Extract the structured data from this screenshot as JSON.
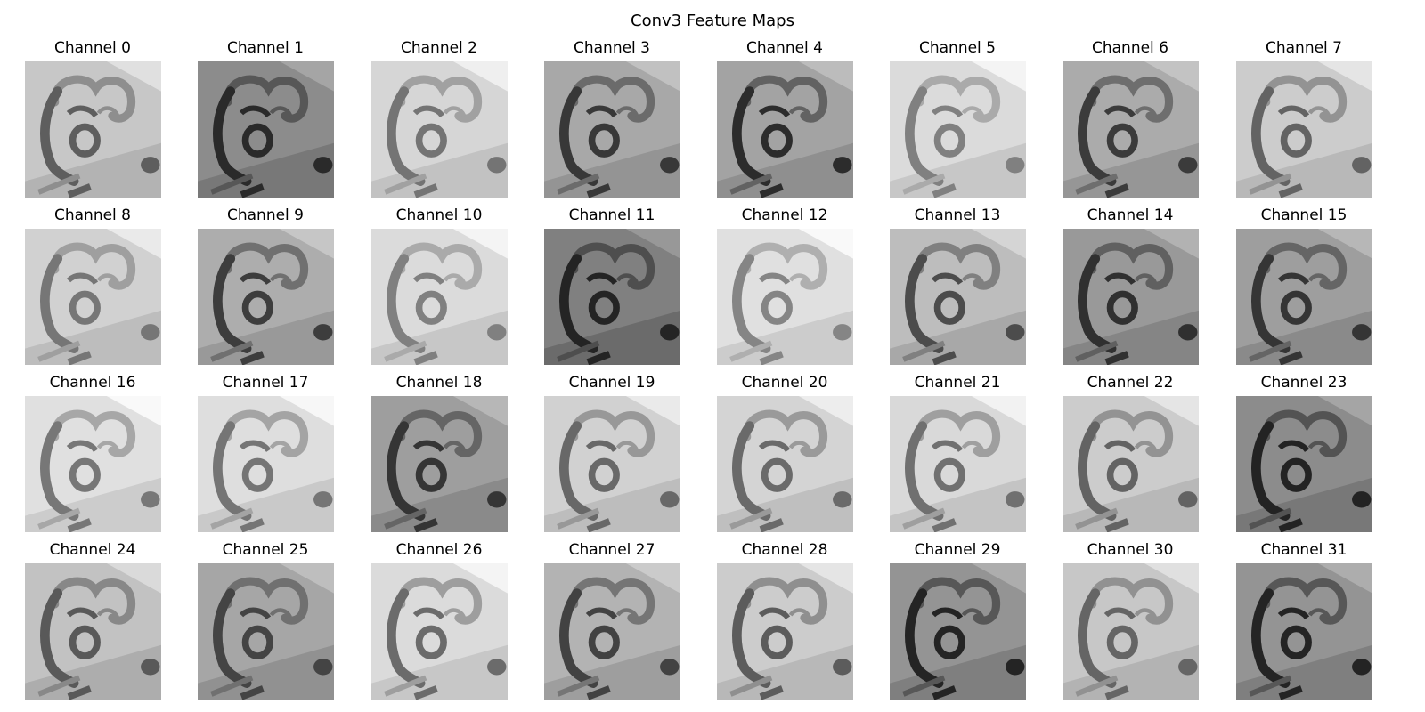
{
  "figure": {
    "title": "Conv3 Feature Maps",
    "colormap": "gray",
    "grid": {
      "rows": 4,
      "cols": 8
    },
    "panels": [
      {
        "title": "Channel 0",
        "tone": 0.78,
        "contrast": 0.75
      },
      {
        "title": "Channel 1",
        "tone": 0.55,
        "contrast": 0.7
      },
      {
        "title": "Channel 2",
        "tone": 0.84,
        "contrast": 0.7
      },
      {
        "title": "Channel 3",
        "tone": 0.66,
        "contrast": 0.8
      },
      {
        "title": "Channel 4",
        "tone": 0.64,
        "contrast": 0.85
      },
      {
        "title": "Channel 5",
        "tone": 0.86,
        "contrast": 0.65
      },
      {
        "title": "Channel 6",
        "tone": 0.67,
        "contrast": 0.8
      },
      {
        "title": "Channel 7",
        "tone": 0.8,
        "contrast": 0.75
      },
      {
        "title": "Channel 8",
        "tone": 0.82,
        "contrast": 0.65
      },
      {
        "title": "Channel 9",
        "tone": 0.68,
        "contrast": 0.8
      },
      {
        "title": "Channel 10",
        "tone": 0.86,
        "contrast": 0.65
      },
      {
        "title": "Channel 11",
        "tone": 0.5,
        "contrast": 0.65
      },
      {
        "title": "Channel 12",
        "tone": 0.88,
        "contrast": 0.65
      },
      {
        "title": "Channel 13",
        "tone": 0.74,
        "contrast": 0.8
      },
      {
        "title": "Channel 14",
        "tone": 0.6,
        "contrast": 0.75
      },
      {
        "title": "Channel 15",
        "tone": 0.62,
        "contrast": 0.75
      },
      {
        "title": "Channel 16",
        "tone": 0.88,
        "contrast": 0.75
      },
      {
        "title": "Channel 17",
        "tone": 0.87,
        "contrast": 0.75
      },
      {
        "title": "Channel 18",
        "tone": 0.62,
        "contrast": 0.75
      },
      {
        "title": "Channel 19",
        "tone": 0.82,
        "contrast": 0.75
      },
      {
        "title": "Channel 20",
        "tone": 0.83,
        "contrast": 0.75
      },
      {
        "title": "Channel 21",
        "tone": 0.85,
        "contrast": 0.75
      },
      {
        "title": "Channel 22",
        "tone": 0.8,
        "contrast": 0.75
      },
      {
        "title": "Channel 23",
        "tone": 0.55,
        "contrast": 0.75
      },
      {
        "title": "Channel 24",
        "tone": 0.76,
        "contrast": 0.75
      },
      {
        "title": "Channel 25",
        "tone": 0.65,
        "contrast": 0.7
      },
      {
        "title": "Channel 26",
        "tone": 0.86,
        "contrast": 0.8
      },
      {
        "title": "Channel 27",
        "tone": 0.7,
        "contrast": 0.8
      },
      {
        "title": "Channel 28",
        "tone": 0.8,
        "contrast": 0.8
      },
      {
        "title": "Channel 29",
        "tone": 0.58,
        "contrast": 0.8
      },
      {
        "title": "Channel 30",
        "tone": 0.78,
        "contrast": 0.7
      },
      {
        "title": "Channel 31",
        "tone": 0.58,
        "contrast": 0.8
      }
    ]
  }
}
